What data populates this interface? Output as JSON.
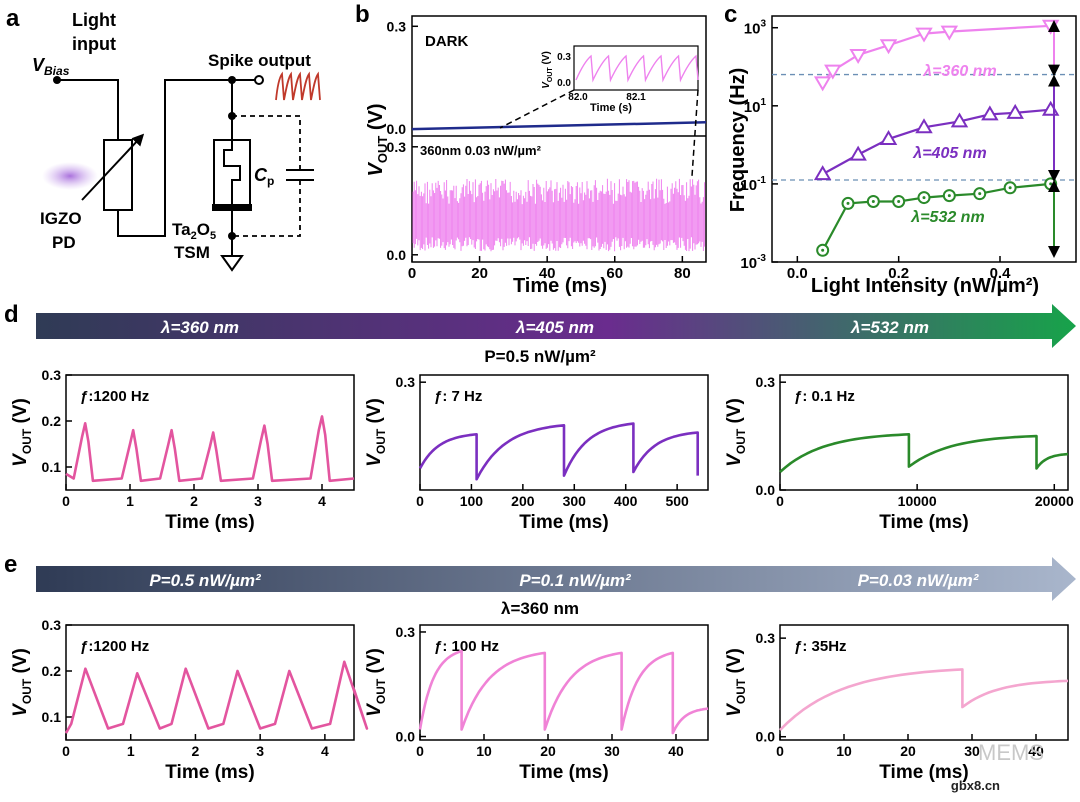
{
  "panel_letters": {
    "a": "a",
    "b": "b",
    "c": "c",
    "d": "d",
    "e": "e"
  },
  "circuit": {
    "vbias_main": "V",
    "vbias_sub": "Bias",
    "light_line1": "Light",
    "light_line2": "input",
    "spike_output": "Spike output",
    "igzo_line1": "IGZO",
    "igzo_line2": "PD",
    "ta_prefix": "Ta",
    "ta_sub2": "2",
    "ta_o": "O",
    "ta_sub5": "5",
    "tsm": "TSM",
    "cp_main": "C",
    "cp_sub": "p"
  },
  "colors": {
    "pink_360": "#ee82ee",
    "purple_405": "#7b2fc0",
    "green_532": "#2a8a2a",
    "dark_blue": "#1f2b8c",
    "spike_red": "#c0392b",
    "d_pink": "#e3559f",
    "e_pink1": "#e3559f",
    "e_pink2": "#f083d6",
    "e_pink3": "#f4a6cf",
    "arrow_d_start": "#2f3b55",
    "arrow_d_mid": "#6a2c8e",
    "arrow_d_end": "#17a34a",
    "arrow_e_start": "#2f3b55",
    "arrow_e_end": "#a9b6cc"
  },
  "chart_data": [
    {
      "panel": "b",
      "type": "line",
      "dark_label": "DARK",
      "lit_label": "360nm 0.03 nW/µm²",
      "xlabel": "Time (ms)",
      "ylabel_main": "V",
      "ylabel_sub": "OUT",
      "ylabel_unit": " (V)",
      "xlim": [
        0,
        87
      ],
      "xticks": [
        0,
        20,
        40,
        60,
        80
      ],
      "top_ylim": [
        -0.02,
        0.33
      ],
      "top_yticks": [
        "0.0",
        "0.3"
      ],
      "bottom_ylim": [
        -0.02,
        0.33
      ],
      "bottom_yticks": [
        "0.0",
        "0.3"
      ],
      "dark_series": {
        "x": [
          0,
          87
        ],
        "y": [
          0.0,
          0.02
        ]
      },
      "lit_band": {
        "low": 0.0,
        "high": 0.3
      },
      "inset": {
        "xlabel": "Time (s)",
        "xticks": [
          "82.0",
          "82.1"
        ],
        "yticks": [
          "0.0",
          "0.3"
        ],
        "ylabel_main": "V",
        "ylabel_sub": "OUT",
        "ylabel_unit": " (V)"
      }
    },
    {
      "panel": "c",
      "type": "scatter",
      "xlabel": "Light Intensity (nW/µm²)",
      "ylabel": "Frequency (Hz)",
      "xlim": [
        -0.05,
        0.55
      ],
      "xticks": [
        "0.0",
        "0.2",
        "0.4"
      ],
      "ylim_log10": [
        -3,
        3.3
      ],
      "yticks": [
        {
          "base": "10",
          "exp": "3"
        },
        {
          "base": "10",
          "exp": "1"
        },
        {
          "base": "10",
          "exp": "-1"
        },
        {
          "base": "10",
          "exp": "-3"
        }
      ],
      "scale": "log",
      "dashed_dividers_log10": [
        1.8,
        -0.9
      ],
      "series": [
        {
          "name": "λ=360 nm",
          "marker": "triangle-down",
          "x": [
            0.05,
            0.07,
            0.12,
            0.18,
            0.25,
            0.3,
            0.5
          ],
          "y_log10": [
            1.6,
            1.9,
            2.3,
            2.55,
            2.85,
            2.9,
            3.05
          ]
        },
        {
          "name": "λ=405 nm",
          "marker": "triangle-up",
          "x": [
            0.05,
            0.12,
            0.18,
            0.25,
            0.32,
            0.38,
            0.43,
            0.5
          ],
          "y_log10": [
            -0.75,
            -0.25,
            0.15,
            0.45,
            0.6,
            0.78,
            0.82,
            0.9
          ]
        },
        {
          "name": "λ=532 nm",
          "marker": "circle",
          "x": [
            0.05,
            0.1,
            0.15,
            0.2,
            0.25,
            0.3,
            0.36,
            0.42,
            0.5
          ],
          "y_log10": [
            -2.7,
            -1.5,
            -1.45,
            -1.45,
            -1.35,
            -1.3,
            -1.25,
            -1.1,
            -1.0
          ]
        }
      ]
    },
    {
      "panel": "d1",
      "type": "line",
      "title": "ƒ:1200 Hz",
      "xlabel": "Time (ms)",
      "xlim": [
        0,
        4.5
      ],
      "xticks": [
        "0",
        "1",
        "2",
        "3",
        "4"
      ],
      "ylim": [
        0.05,
        0.3
      ],
      "yticks": [
        {
          "v": 0.1,
          "l": "0.1"
        },
        {
          "v": 0.2,
          "l": "0.2"
        },
        {
          "v": 0.3,
          "l": "0.3"
        }
      ],
      "series": {
        "kind": "spikes",
        "base": 0.075,
        "peaks": [
          {
            "t": 0.3,
            "h": 0.195
          },
          {
            "t": 1.05,
            "h": 0.18
          },
          {
            "t": 1.65,
            "h": 0.18
          },
          {
            "t": 2.3,
            "h": 0.175
          },
          {
            "t": 3.1,
            "h": 0.19
          },
          {
            "t": 4.0,
            "h": 0.21
          }
        ],
        "rise": 0.18,
        "fall": 0.12
      }
    },
    {
      "panel": "d2",
      "type": "line",
      "title": "ƒ: 7 Hz",
      "xlabel": "Time (ms)",
      "xlim": [
        0,
        560
      ],
      "xticks": [
        "0",
        "100",
        "200",
        "300",
        "400",
        "500"
      ],
      "ylim": [
        0.0,
        0.32
      ],
      "yticks": [
        {
          "v": 0.3,
          "l": "0.3"
        }
      ],
      "series": {
        "kind": "sawtooth",
        "start": 0.06,
        "resets": [
          {
            "t": 110,
            "top": 0.155,
            "low": 0.03
          },
          {
            "t": 280,
            "top": 0.18,
            "low": 0.04
          },
          {
            "t": 415,
            "top": 0.185,
            "low": 0.05
          },
          {
            "t": 540,
            "top": 0.16,
            "low": 0.04
          }
        ]
      }
    },
    {
      "panel": "d3",
      "type": "line",
      "title": "ƒ: 0.1 Hz",
      "xlabel": "Time (ms)",
      "xlim": [
        0,
        21000
      ],
      "xticks": [
        "0",
        "10000",
        "20000"
      ],
      "ylim": [
        0.0,
        0.32
      ],
      "yticks": [
        {
          "v": 0.0,
          "l": "0.0"
        },
        {
          "v": 0.3,
          "l": "0.3"
        }
      ],
      "series": {
        "kind": "sawtooth",
        "start": 0.05,
        "resets": [
          {
            "t": 9400,
            "top": 0.155,
            "low": 0.065
          },
          {
            "t": 18700,
            "top": 0.15,
            "low": 0.06
          },
          {
            "t": 21000,
            "top": 0.1,
            "low": 0.1
          }
        ]
      }
    },
    {
      "panel": "e1",
      "type": "line",
      "title": "ƒ:1200 Hz",
      "xlabel": "Time (ms)",
      "xlim": [
        0,
        4.45
      ],
      "xticks": [
        "0",
        "1",
        "2",
        "3",
        "4"
      ],
      "ylim": [
        0.05,
        0.3
      ],
      "yticks": [
        {
          "v": 0.1,
          "l": "0.1"
        },
        {
          "v": 0.2,
          "l": "0.2"
        },
        {
          "v": 0.3,
          "l": "0.3"
        }
      ],
      "series": {
        "kind": "tri",
        "base": 0.065,
        "peaks": [
          {
            "t": 0.3,
            "h": 0.205
          },
          {
            "t": 1.1,
            "h": 0.195
          },
          {
            "t": 1.85,
            "h": 0.205
          },
          {
            "t": 2.65,
            "h": 0.2
          },
          {
            "t": 3.45,
            "h": 0.2
          },
          {
            "t": 4.3,
            "h": 0.22
          }
        ]
      }
    },
    {
      "panel": "e2",
      "type": "line",
      "title": "ƒ: 100 Hz",
      "xlabel": "Time (ms)",
      "xlim": [
        0,
        45
      ],
      "xticks": [
        "0",
        "10",
        "20",
        "30",
        "40"
      ],
      "ylim": [
        -0.01,
        0.32
      ],
      "yticks": [
        {
          "v": 0.0,
          "l": "0.0"
        },
        {
          "v": 0.3,
          "l": "0.3"
        }
      ],
      "series": {
        "kind": "sawtooth",
        "start": 0.02,
        "resets": [
          {
            "t": 6.5,
            "top": 0.245,
            "low": 0.02
          },
          {
            "t": 19.5,
            "top": 0.24,
            "low": 0.02
          },
          {
            "t": 31.5,
            "top": 0.24,
            "low": 0.02
          },
          {
            "t": 39.5,
            "top": 0.24,
            "low": 0.01
          },
          {
            "t": 45,
            "top": 0.08,
            "low": 0.08
          }
        ]
      }
    },
    {
      "panel": "e3",
      "type": "line",
      "title": "ƒ: 35Hz",
      "xlabel": "Time (ms)",
      "xlim": [
        0,
        45
      ],
      "xticks": [
        "0",
        "10",
        "20",
        "30",
        "40"
      ],
      "ylim": [
        -0.01,
        0.34
      ],
      "yticks": [
        {
          "v": 0.0,
          "l": "0.0"
        },
        {
          "v": 0.3,
          "l": "0.3"
        }
      ],
      "series": {
        "kind": "sawtooth",
        "start": 0.02,
        "resets": [
          {
            "t": 28.5,
            "top": 0.205,
            "low": 0.09
          },
          {
            "t": 45,
            "top": 0.17,
            "low": 0.17
          }
        ]
      }
    }
  ],
  "arrow_d": {
    "labels": [
      "λ=360 nm",
      "λ=405 nm",
      "λ=532 nm"
    ],
    "sub": "P=0.5 nW/µm²"
  },
  "arrow_e": {
    "labels": [
      "P=0.5 nW/µm²",
      "P=0.1 nW/µm²",
      "P=0.03 nW/µm²"
    ],
    "sub": "λ=360 nm"
  },
  "vout_axis": {
    "main": "V",
    "sub": "OUT",
    "unit": " (V)"
  },
  "watermark": {
    "text": "MEMS",
    "site": "gbx8.cn"
  }
}
